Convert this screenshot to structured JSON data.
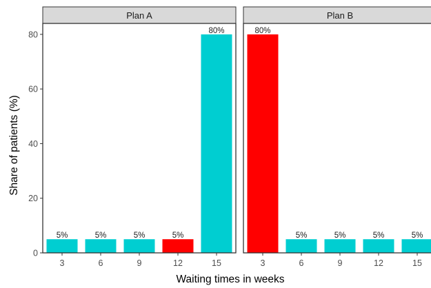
{
  "chart_data": {
    "type": "bar",
    "xlabel": "Waiting times in weeks",
    "ylabel": "Share of patients (%)",
    "ylim": [
      0,
      84
    ],
    "yticks": [
      0,
      20,
      40,
      60,
      80
    ],
    "categories": [
      "3",
      "6",
      "9",
      "12",
      "15"
    ],
    "grid": false,
    "legend": "none",
    "colors": {
      "default": "#00CED1",
      "highlight": "#FF0000",
      "strip": "#D9D9D9",
      "border": "#333333"
    },
    "panels": [
      {
        "name": "Plan A",
        "values": [
          5,
          5,
          5,
          5,
          80
        ],
        "labels": [
          "5%",
          "5%",
          "5%",
          "5%",
          "80%"
        ],
        "highlight": [
          false,
          false,
          false,
          true,
          false
        ]
      },
      {
        "name": "Plan B",
        "values": [
          80,
          5,
          5,
          5,
          5
        ],
        "labels": [
          "80%",
          "5%",
          "5%",
          "5%",
          "5%"
        ],
        "highlight": [
          true,
          false,
          false,
          false,
          false
        ]
      }
    ]
  }
}
